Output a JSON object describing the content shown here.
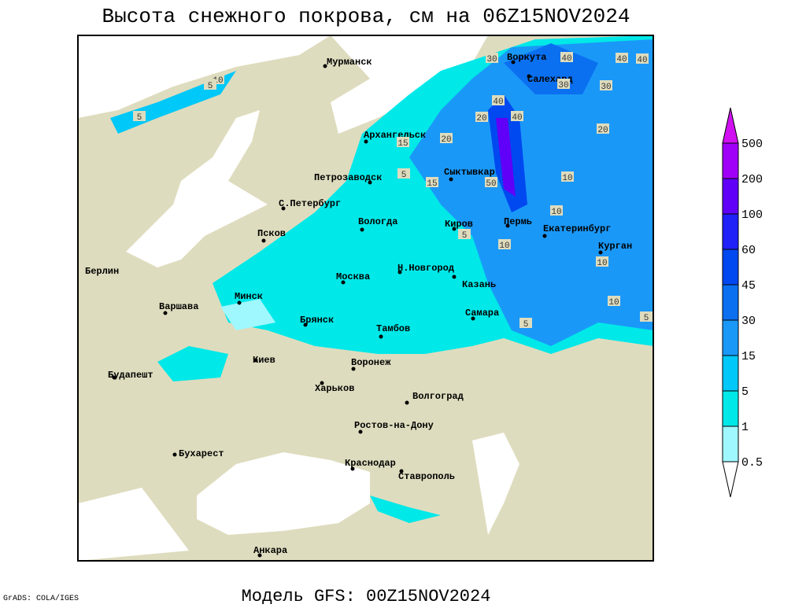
{
  "title": "Высота снежного покрова, см на 06Z15NOV2024",
  "footer": "Модель GFS: 00Z15NOV2024",
  "credit": "GrADS: COLA/IGES",
  "cities": [
    "Мурманск",
    "Воркута",
    "Салехард",
    "Архангельск",
    "Петрозаводск",
    "Сыктывкар",
    "С.Петербург",
    "Вологда",
    "Киров",
    "Пермь",
    "Екатеринбург",
    "Псков",
    "Курган",
    "Н.Новгород",
    "Берлин",
    "Москва",
    "Казань",
    "Минск",
    "Варшава",
    "Самара",
    "Брянск",
    "Тамбов",
    "Киев",
    "Воронеж",
    "Будапешт",
    "Харьков",
    "Волгоград",
    "Ростов-на-Дону",
    "Бухарест",
    "Краснодар",
    "Ставрополь",
    "Анкара"
  ],
  "contour_labels": [
    "30",
    "40",
    "40",
    "40",
    "10",
    "5",
    "30",
    "30",
    "40",
    "20",
    "40",
    "20",
    "20",
    "15",
    "5",
    "15",
    "50",
    "10",
    "10",
    "5",
    "10",
    "10",
    "10",
    "5",
    "5",
    "5"
  ],
  "legend": {
    "levels": [
      0.5,
      1,
      5,
      15,
      30,
      45,
      60,
      100,
      200,
      500
    ],
    "colors": [
      "#ffffff",
      "#a0f8ff",
      "#00e8e8",
      "#00c8f8",
      "#1a98f8",
      "#0a70f0",
      "#0048f0",
      "#2020f8",
      "#6000f8",
      "#a000f8",
      "#d010f0"
    ]
  }
}
